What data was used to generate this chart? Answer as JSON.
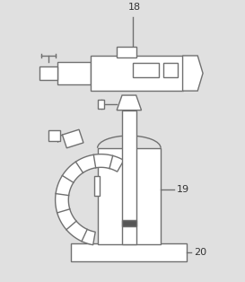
{
  "background_color": "#e0e0e0",
  "line_color": "#707070",
  "line_width": 1.0,
  "fill_color": "#ffffff",
  "dark_band_color": "#555555",
  "label_18": "18",
  "label_19": "19",
  "label_20": "20",
  "label_fontsize": 8,
  "fig_width": 2.73,
  "fig_height": 3.14,
  "dpi": 100
}
